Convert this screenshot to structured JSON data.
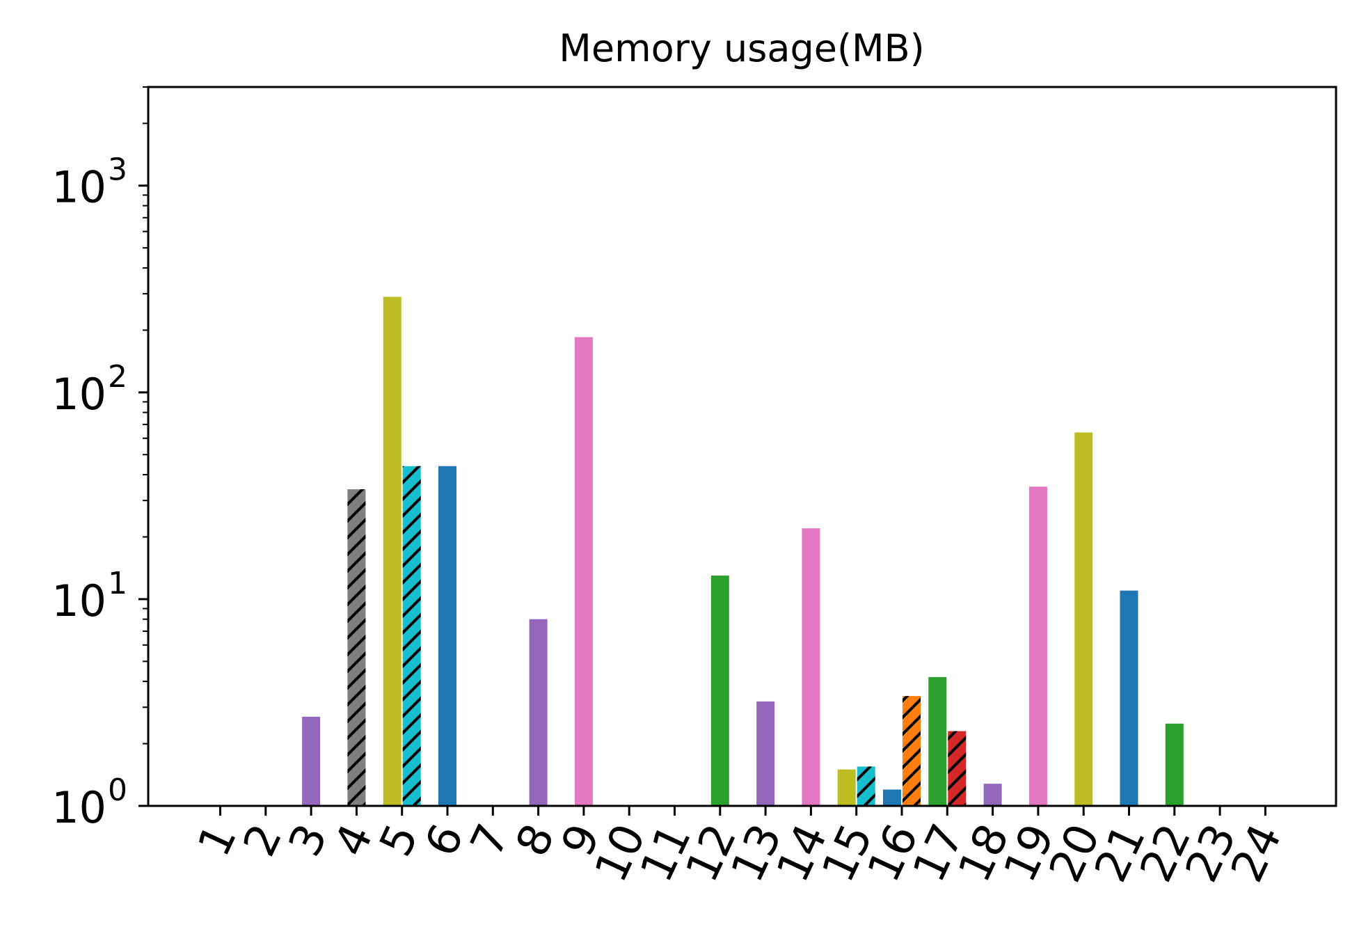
{
  "chart_data": {
    "type": "bar",
    "title": "Memory usage(MB)",
    "xlabel": "",
    "ylabel": "",
    "yscale": "log",
    "ylim": [
      1,
      3000
    ],
    "yticks": [
      {
        "value": 1,
        "base": "10",
        "exp": "0"
      },
      {
        "value": 10,
        "base": "10",
        "exp": "1"
      },
      {
        "value": 100,
        "base": "10",
        "exp": "2"
      },
      {
        "value": 1000,
        "base": "10",
        "exp": "3"
      }
    ],
    "categories": [
      "1",
      "2",
      "3",
      "4",
      "5",
      "6",
      "7",
      "8",
      "9",
      "10",
      "11",
      "12",
      "13",
      "14",
      "15",
      "16",
      "17",
      "18",
      "19",
      "20",
      "21",
      "22",
      "23",
      "24"
    ],
    "bars": [
      {
        "category": "3",
        "value": 2.7,
        "color": "#9467bd",
        "hatched": false
      },
      {
        "category": "4",
        "value": 34,
        "color": "#7f7f7f",
        "hatched": true
      },
      {
        "category": "5",
        "value": 290,
        "color": "#bcbd22",
        "hatched": false
      },
      {
        "category": "5",
        "value": 44,
        "color": "#17becf",
        "hatched": true
      },
      {
        "category": "6",
        "value": 44,
        "color": "#1f77b4",
        "hatched": false
      },
      {
        "category": "8",
        "value": 8,
        "color": "#9467bd",
        "hatched": false
      },
      {
        "category": "9",
        "value": 185,
        "color": "#e377c2",
        "hatched": false
      },
      {
        "category": "12",
        "value": 13,
        "color": "#2ca02c",
        "hatched": false
      },
      {
        "category": "13",
        "value": 3.2,
        "color": "#9467bd",
        "hatched": false
      },
      {
        "category": "14",
        "value": 22,
        "color": "#e377c2",
        "hatched": false
      },
      {
        "category": "15",
        "value": 1.5,
        "color": "#bcbd22",
        "hatched": false
      },
      {
        "category": "15",
        "value": 1.55,
        "color": "#17becf",
        "hatched": true
      },
      {
        "category": "16",
        "value": 1.2,
        "color": "#1f77b4",
        "hatched": false
      },
      {
        "category": "16",
        "value": 3.4,
        "color": "#ff7f0e",
        "hatched": true
      },
      {
        "category": "17",
        "value": 4.2,
        "color": "#2ca02c",
        "hatched": false
      },
      {
        "category": "17",
        "value": 2.3,
        "color": "#d62728",
        "hatched": true
      },
      {
        "category": "18",
        "value": 1.28,
        "color": "#9467bd",
        "hatched": false
      },
      {
        "category": "19",
        "value": 35,
        "color": "#e377c2",
        "hatched": false
      },
      {
        "category": "20",
        "value": 64,
        "color": "#bcbd22",
        "hatched": false
      },
      {
        "category": "21",
        "value": 11,
        "color": "#1f77b4",
        "hatched": false
      },
      {
        "category": "22",
        "value": 2.5,
        "color": "#2ca02c",
        "hatched": false
      }
    ]
  }
}
